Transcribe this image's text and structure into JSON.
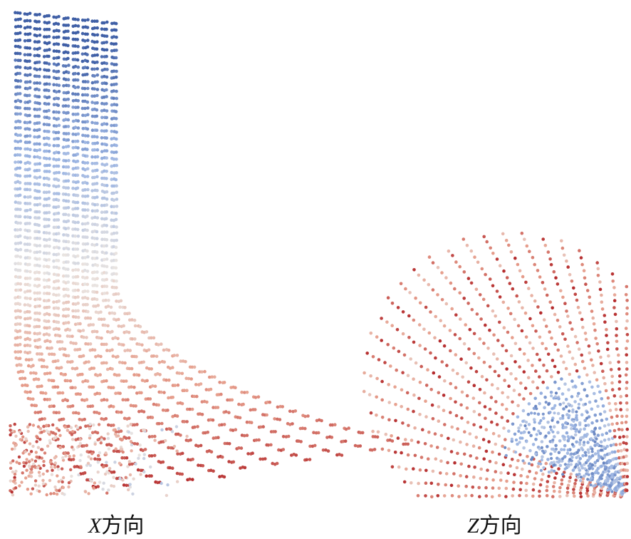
{
  "figure": {
    "panels": [
      {
        "id": "x-direction",
        "axis_letter": "X",
        "label_suffix": "方向"
      },
      {
        "id": "z-direction",
        "axis_letter": "Z",
        "label_suffix": "方向"
      }
    ],
    "colors": {
      "blue_dark": "#3f5fa6",
      "blue_light": "#9db6e3",
      "white": "#e9e4e1",
      "red_light": "#e7a08e",
      "red_dark": "#b42a2c"
    }
  }
}
